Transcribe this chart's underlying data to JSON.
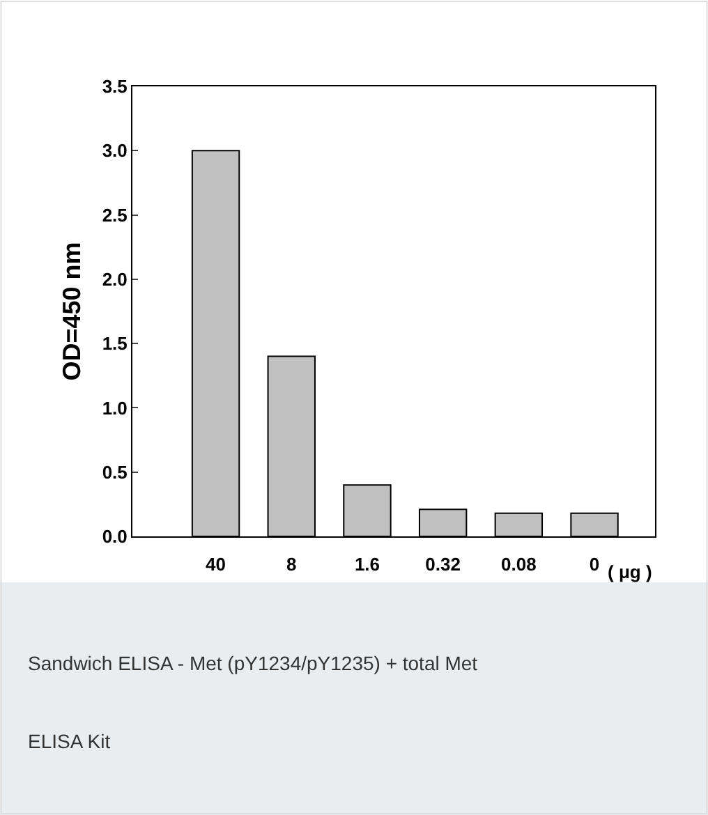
{
  "chart_data": {
    "type": "bar",
    "ylabel": "OD=450 nm",
    "xlabel": "( μg )",
    "categories": [
      "40",
      "8",
      "1.6",
      "0.32",
      "0.08",
      "0"
    ],
    "values": [
      3.0,
      1.4,
      0.4,
      0.21,
      0.18,
      0.18
    ],
    "color": "#c0c0c0",
    "ylim": [
      0,
      3.5
    ],
    "yticks": [
      {
        "value": 0,
        "label": "0.0"
      },
      {
        "value": 0.5,
        "label": "0.5"
      },
      {
        "value": 1,
        "label": "1.0"
      },
      {
        "value": 1.5,
        "label": "1.5"
      },
      {
        "value": 2,
        "label": "2.0"
      },
      {
        "value": 2.5,
        "label": "2.5"
      },
      {
        "value": 3,
        "label": "3.0"
      },
      {
        "value": 3.5,
        "label": "3.5"
      }
    ],
    "annotations": [
      "Sandwich ELISA - Met (pY1234/pY1235) + total Met ELISA Kit"
    ]
  }
}
